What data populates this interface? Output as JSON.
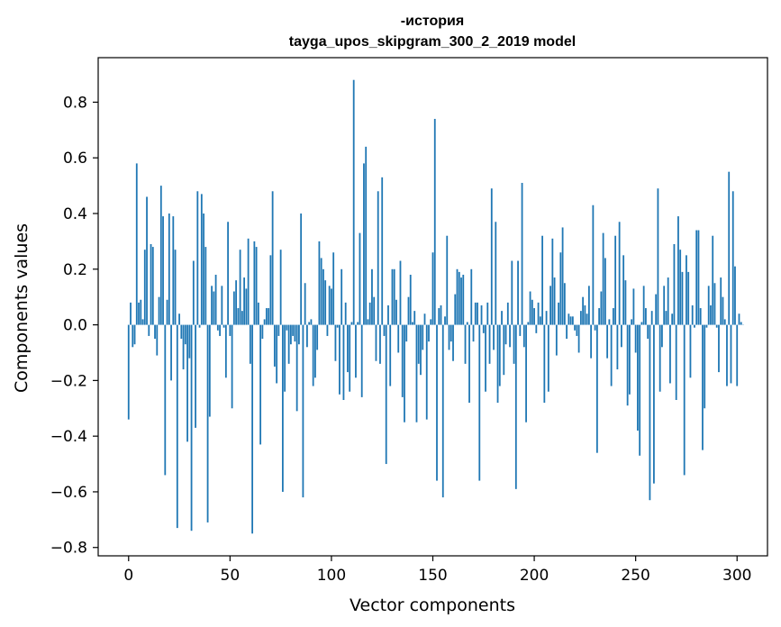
{
  "chart_data": {
    "type": "bar",
    "title": "-история",
    "subtitle": "tayga_upos_skipgram_300_2_2019 model",
    "xlabel": "Vector components",
    "ylabel": "Components values",
    "xlim": [
      -15,
      315
    ],
    "ylim": [
      -0.83,
      0.96
    ],
    "xticks": [
      0,
      50,
      100,
      150,
      200,
      250,
      300
    ],
    "yticks": [
      -0.8,
      -0.6,
      -0.4,
      -0.2,
      0.0,
      0.2,
      0.4,
      0.6,
      0.8
    ],
    "xtick_labels": [
      "0",
      "50",
      "100",
      "150",
      "200",
      "250",
      "300"
    ],
    "ytick_labels": [
      "−0.8",
      "−0.6",
      "−0.4",
      "−0.2",
      "0.0",
      "0.2",
      "0.4",
      "0.6",
      "0.8"
    ],
    "bar_color": "#1f77b4",
    "grid": false,
    "x_start": 0,
    "values": [
      -0.34,
      0.08,
      -0.08,
      -0.07,
      0.58,
      0.08,
      0.09,
      0.02,
      0.27,
      0.46,
      -0.04,
      0.29,
      0.28,
      -0.05,
      -0.11,
      0.1,
      0.5,
      0.39,
      -0.54,
      0.09,
      0.4,
      -0.2,
      0.39,
      0.27,
      -0.73,
      0.04,
      -0.05,
      -0.16,
      -0.07,
      -0.42,
      -0.12,
      -0.74,
      0.23,
      -0.37,
      0.48,
      -0.01,
      0.47,
      0.4,
      0.28,
      -0.71,
      -0.33,
      0.14,
      0.12,
      0.18,
      -0.02,
      -0.04,
      0.14,
      -0.01,
      -0.19,
      0.37,
      -0.04,
      -0.3,
      0.12,
      0.16,
      0.06,
      0.27,
      0.05,
      0.17,
      0.13,
      0.31,
      -0.14,
      -0.75,
      0.3,
      0.28,
      0.08,
      -0.43,
      -0.05,
      0.02,
      0.06,
      0.06,
      0.25,
      0.48,
      -0.15,
      -0.21,
      -0.04,
      0.27,
      -0.6,
      -0.24,
      -0.02,
      -0.14,
      -0.07,
      -0.04,
      -0.06,
      -0.31,
      -0.07,
      0.4,
      -0.62,
      0.15,
      -0.08,
      0.01,
      0.02,
      -0.22,
      -0.19,
      -0.09,
      0.3,
      0.24,
      0.2,
      0.16,
      -0.04,
      0.14,
      0.13,
      0.26,
      -0.13,
      -0.01,
      -0.25,
      0.2,
      -0.27,
      0.08,
      -0.17,
      -0.24,
      0.01,
      0.88,
      -0.19,
      0.01,
      0.33,
      -0.26,
      0.58,
      0.64,
      0.02,
      0.08,
      0.2,
      0.1,
      -0.13,
      0.48,
      -0.14,
      0.53,
      -0.04,
      -0.5,
      0.07,
      -0.22,
      0.2,
      0.2,
      0.09,
      -0.1,
      0.23,
      -0.26,
      -0.35,
      -0.06,
      0.1,
      0.18,
      0.01,
      0.05,
      -0.35,
      -0.14,
      -0.18,
      -0.09,
      0.04,
      -0.34,
      -0.06,
      0.02,
      0.26,
      0.74,
      -0.56,
      0.06,
      0.07,
      -0.62,
      0.03,
      0.32,
      -0.09,
      -0.06,
      -0.13,
      0.11,
      0.2,
      0.19,
      0.17,
      0.18,
      -0.14,
      0.01,
      -0.28,
      0.2,
      -0.06,
      0.08,
      0.08,
      -0.56,
      0.07,
      -0.03,
      -0.24,
      0.08,
      -0.14,
      0.49,
      -0.09,
      0.37,
      -0.28,
      -0.22,
      0.05,
      -0.18,
      -0.07,
      0.08,
      -0.08,
      0.23,
      -0.14,
      -0.59,
      0.23,
      -0.04,
      0.51,
      -0.08,
      -0.35,
      0.01,
      0.12,
      0.09,
      0.06,
      -0.03,
      0.08,
      0.03,
      0.32,
      -0.28,
      0.05,
      -0.24,
      0.14,
      0.31,
      0.17,
      -0.11,
      0.08,
      0.26,
      0.35,
      0.15,
      -0.05,
      0.04,
      0.03,
      0.03,
      -0.02,
      -0.04,
      -0.1,
      0.05,
      0.1,
      0.07,
      0.04,
      0.14,
      -0.12,
      0.43,
      -0.02,
      -0.46,
      0.06,
      0.12,
      0.33,
      0.24,
      -0.12,
      0.02,
      -0.22,
      0.06,
      0.32,
      -0.16,
      0.37,
      -0.08,
      0.25,
      0.16,
      -0.29,
      -0.25,
      0.02,
      0.13,
      -0.1,
      -0.38,
      -0.47,
      0.01,
      0.14,
      0.06,
      -0.05,
      -0.63,
      0.05,
      -0.57,
      0.11,
      0.49,
      -0.24,
      -0.08,
      0.14,
      0.05,
      0.17,
      -0.21,
      0.04,
      0.29,
      -0.27,
      0.39,
      0.27,
      0.19,
      -0.54,
      0.25,
      0.19,
      -0.19,
      0.07,
      -0.01,
      0.34,
      0.34,
      0.06,
      -0.45,
      -0.3,
      -0.01,
      0.14,
      0.07,
      0.32,
      0.15,
      -0.01,
      -0.17,
      0.17,
      0.1,
      0.02,
      -0.22,
      0.55,
      -0.21,
      0.48,
      0.21,
      -0.22,
      0.04,
      0.01,
      0.0
    ]
  }
}
